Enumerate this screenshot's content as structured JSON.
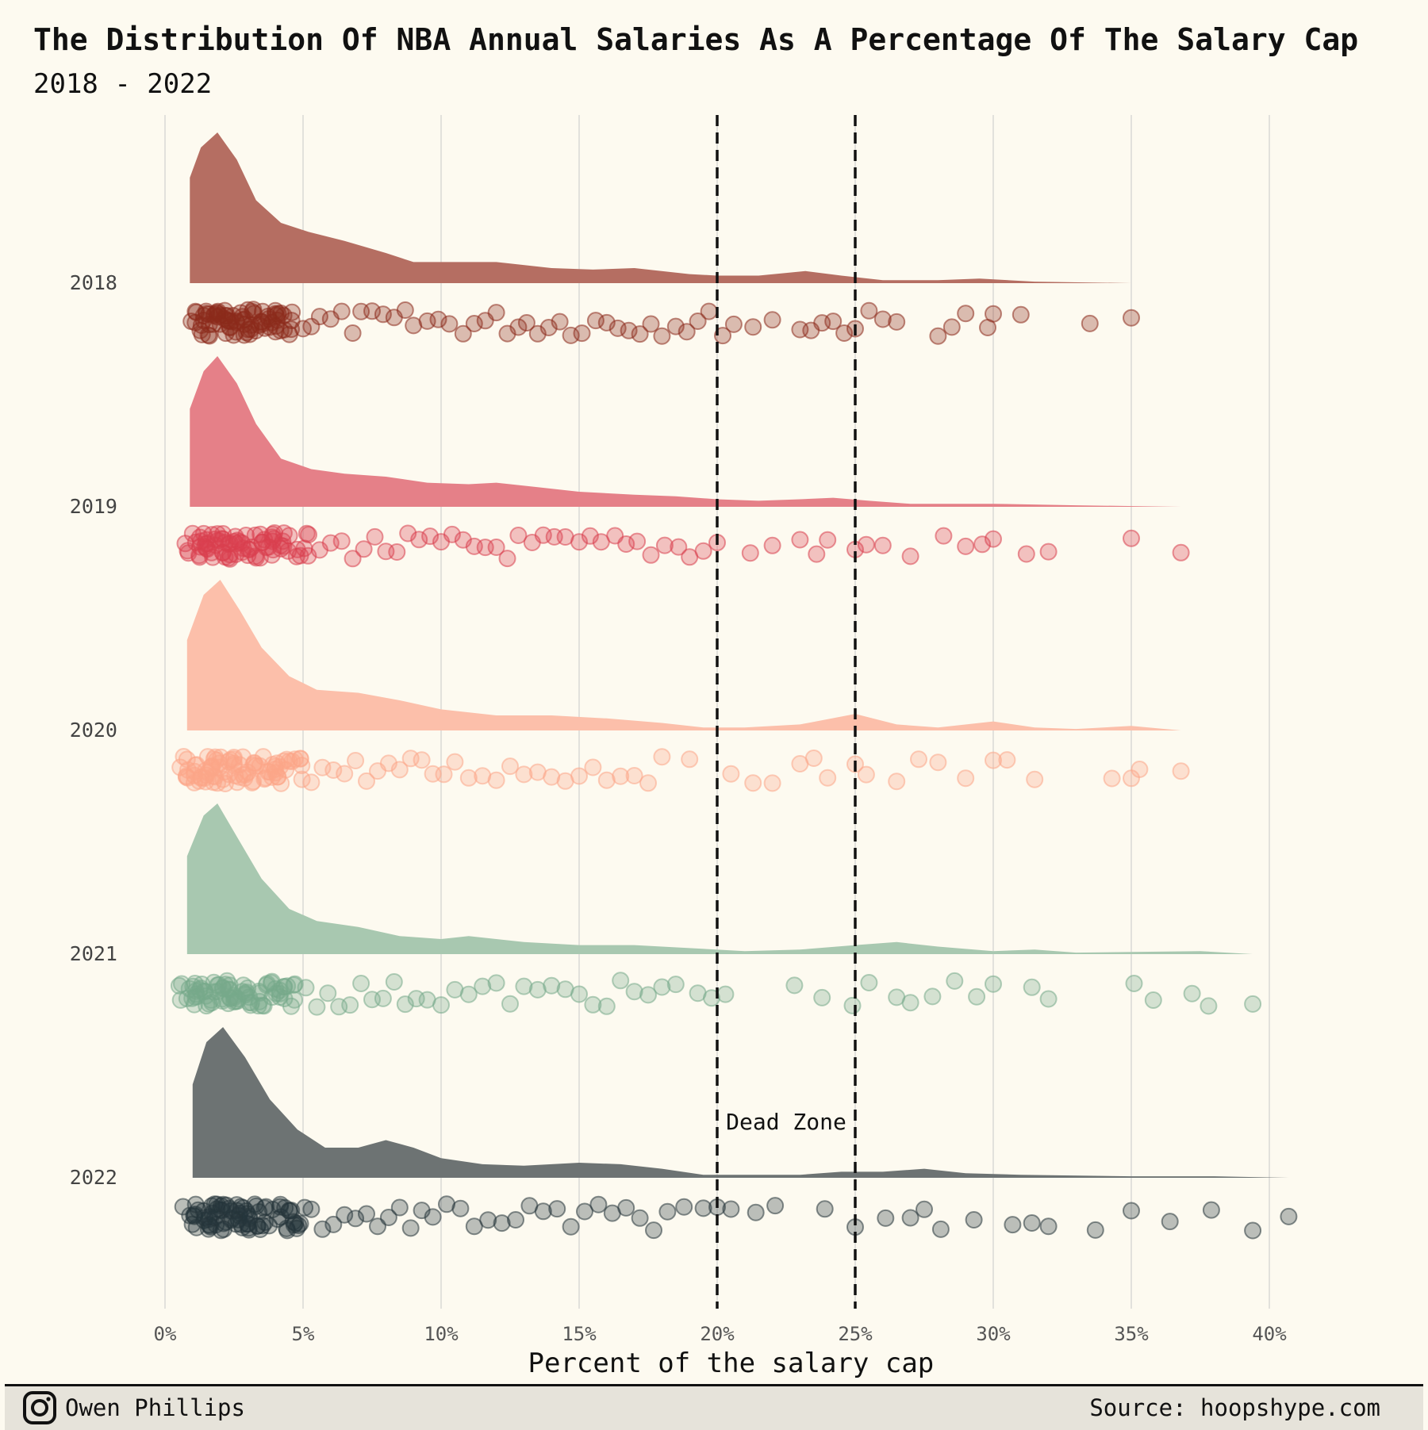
{
  "chart_data": {
    "type": "raincloud",
    "title": "The Distribution Of NBA Annual Salaries As A Percentage Of The Salary Cap",
    "subtitle": "2018 - 2022",
    "xlabel": "Percent of the salary cap",
    "ylabel": "",
    "xlim": [
      0,
      41
    ],
    "x_ticks": [
      0,
      5,
      10,
      15,
      20,
      25,
      30,
      35,
      40
    ],
    "x_tick_labels": [
      "0%",
      "5%",
      "10%",
      "15%",
      "20%",
      "25%",
      "30%",
      "35%",
      "40%"
    ],
    "grid": "vertical",
    "reference_lines": [
      20,
      25
    ],
    "annotation": "Dead Zone",
    "series": [
      {
        "name": "2018",
        "color": "#8c2a1c",
        "fill": "#b56e62",
        "density": [
          [
            0.9,
            0.7
          ],
          [
            1.3,
            0.9
          ],
          [
            1.9,
            1.0
          ],
          [
            2.6,
            0.82
          ],
          [
            3.3,
            0.55
          ],
          [
            4.2,
            0.4
          ],
          [
            5.2,
            0.34
          ],
          [
            6.5,
            0.28
          ],
          [
            8.0,
            0.2
          ],
          [
            9.0,
            0.14
          ],
          [
            11.0,
            0.14
          ],
          [
            12.0,
            0.14
          ],
          [
            14.0,
            0.1
          ],
          [
            15.5,
            0.09
          ],
          [
            17.0,
            0.1
          ],
          [
            19.0,
            0.06
          ],
          [
            20.0,
            0.05
          ],
          [
            21.5,
            0.05
          ],
          [
            23.2,
            0.08
          ],
          [
            24.5,
            0.05
          ],
          [
            26.0,
            0.02
          ],
          [
            28.0,
            0.02
          ],
          [
            29.5,
            0.03
          ],
          [
            31.5,
            0.01
          ],
          [
            35.0,
            0.0
          ]
        ],
        "points": [
          1.1,
          1.4,
          1.6,
          1.8,
          2.0,
          2.2,
          2.4,
          2.6,
          2.8,
          3.0,
          3.2,
          3.5,
          3.8,
          4.0,
          4.3,
          4.6,
          5.0,
          5.3,
          5.6,
          6.0,
          6.4,
          6.8,
          7.1,
          7.5,
          7.9,
          8.3,
          8.7,
          9.0,
          9.5,
          9.9,
          10.3,
          10.8,
          11.2,
          11.6,
          12.0,
          12.4,
          12.8,
          13.1,
          13.5,
          13.9,
          14.3,
          14.7,
          15.1,
          15.6,
          16.0,
          16.4,
          16.8,
          17.2,
          17.6,
          18.0,
          18.5,
          18.9,
          19.3,
          19.7,
          20.2,
          20.6,
          21.3,
          22.0,
          23.0,
          23.4,
          23.8,
          24.2,
          24.6,
          25.0,
          25.5,
          26.0,
          26.5,
          28.0,
          28.5,
          29.0,
          29.8,
          30.0,
          31.0,
          33.5,
          35.0
        ]
      },
      {
        "name": "2019",
        "color": "#d9404e",
        "fill": "#e58088",
        "density": [
          [
            0.9,
            0.65
          ],
          [
            1.4,
            0.9
          ],
          [
            1.9,
            1.0
          ],
          [
            2.6,
            0.82
          ],
          [
            3.3,
            0.55
          ],
          [
            4.2,
            0.32
          ],
          [
            5.3,
            0.25
          ],
          [
            6.5,
            0.22
          ],
          [
            8.0,
            0.2
          ],
          [
            9.5,
            0.16
          ],
          [
            11.0,
            0.15
          ],
          [
            12.0,
            0.16
          ],
          [
            13.5,
            0.13
          ],
          [
            15.0,
            0.1
          ],
          [
            17.0,
            0.08
          ],
          [
            18.5,
            0.07
          ],
          [
            20.0,
            0.05
          ],
          [
            21.5,
            0.04
          ],
          [
            23.0,
            0.05
          ],
          [
            24.2,
            0.06
          ],
          [
            25.5,
            0.04
          ],
          [
            27.0,
            0.02
          ],
          [
            30.0,
            0.02
          ],
          [
            33.0,
            0.01
          ],
          [
            36.8,
            0.0
          ]
        ],
        "points": [
          1.0,
          1.3,
          1.5,
          1.7,
          1.9,
          2.1,
          2.3,
          2.5,
          2.8,
          3.0,
          3.3,
          3.6,
          3.9,
          4.2,
          4.5,
          4.9,
          5.2,
          5.6,
          6.0,
          6.4,
          6.8,
          7.2,
          7.6,
          8.0,
          8.4,
          8.8,
          9.2,
          9.6,
          10.0,
          10.4,
          10.8,
          11.2,
          11.6,
          12.0,
          12.4,
          12.8,
          13.3,
          13.7,
          14.1,
          14.5,
          15.0,
          15.4,
          15.8,
          16.3,
          16.7,
          17.1,
          17.6,
          18.1,
          18.6,
          19.0,
          19.5,
          20.0,
          21.2,
          22.0,
          23.0,
          23.6,
          24.0,
          25.0,
          25.4,
          26.0,
          27.0,
          28.2,
          29.0,
          29.6,
          30.0,
          31.2,
          32.0,
          35.0,
          36.8
        ]
      },
      {
        "name": "2020",
        "color": "#fca588",
        "fill": "#fcbfaa",
        "density": [
          [
            0.8,
            0.6
          ],
          [
            1.4,
            0.9
          ],
          [
            2.0,
            1.0
          ],
          [
            2.7,
            0.8
          ],
          [
            3.5,
            0.55
          ],
          [
            4.5,
            0.36
          ],
          [
            5.5,
            0.27
          ],
          [
            7.0,
            0.25
          ],
          [
            8.5,
            0.2
          ],
          [
            10.0,
            0.14
          ],
          [
            12.0,
            0.1
          ],
          [
            14.0,
            0.1
          ],
          [
            16.0,
            0.08
          ],
          [
            18.0,
            0.05
          ],
          [
            19.5,
            0.02
          ],
          [
            21.0,
            0.02
          ],
          [
            23.0,
            0.04
          ],
          [
            25.0,
            0.11
          ],
          [
            26.5,
            0.04
          ],
          [
            28.0,
            0.02
          ],
          [
            30.0,
            0.06
          ],
          [
            31.5,
            0.02
          ],
          [
            33.0,
            0.01
          ],
          [
            35.0,
            0.03
          ],
          [
            36.8,
            0.0
          ]
        ],
        "points": [
          0.8,
          1.1,
          1.3,
          1.5,
          1.7,
          1.9,
          2.1,
          2.3,
          2.5,
          2.7,
          3.0,
          3.3,
          3.6,
          3.9,
          4.2,
          4.5,
          4.9,
          5.3,
          5.7,
          6.1,
          6.5,
          6.9,
          7.3,
          7.7,
          8.1,
          8.5,
          8.9,
          9.3,
          9.7,
          10.1,
          10.5,
          11.0,
          11.5,
          12.0,
          12.5,
          13.0,
          13.5,
          14.0,
          14.5,
          15.0,
          15.5,
          16.0,
          16.5,
          17.0,
          17.5,
          18.0,
          19.0,
          20.5,
          21.3,
          22.0,
          23.0,
          23.5,
          24.0,
          25.0,
          25.4,
          26.5,
          27.3,
          28.0,
          29.0,
          30.0,
          30.5,
          31.5,
          34.3,
          35.0,
          35.3,
          36.8
        ]
      },
      {
        "name": "2021",
        "color": "#77a98a",
        "fill": "#a8c8b0",
        "density": [
          [
            0.8,
            0.65
          ],
          [
            1.4,
            0.92
          ],
          [
            1.9,
            1.0
          ],
          [
            2.6,
            0.78
          ],
          [
            3.5,
            0.5
          ],
          [
            4.5,
            0.3
          ],
          [
            5.5,
            0.22
          ],
          [
            7.0,
            0.18
          ],
          [
            8.5,
            0.12
          ],
          [
            10.0,
            0.1
          ],
          [
            11.0,
            0.12
          ],
          [
            13.0,
            0.08
          ],
          [
            15.0,
            0.06
          ],
          [
            17.0,
            0.06
          ],
          [
            19.0,
            0.04
          ],
          [
            21.0,
            0.02
          ],
          [
            23.0,
            0.03
          ],
          [
            25.0,
            0.06
          ],
          [
            26.5,
            0.08
          ],
          [
            28.0,
            0.05
          ],
          [
            30.0,
            0.02
          ],
          [
            31.5,
            0.03
          ],
          [
            33.0,
            0.01
          ],
          [
            37.5,
            0.02
          ],
          [
            39.4,
            0.0
          ]
        ],
        "points": [
          0.8,
          1.1,
          1.3,
          1.5,
          1.7,
          1.9,
          2.1,
          2.3,
          2.5,
          2.8,
          3.1,
          3.4,
          3.7,
          4.0,
          4.3,
          4.7,
          5.1,
          5.5,
          5.9,
          6.3,
          6.7,
          7.1,
          7.5,
          7.9,
          8.3,
          8.7,
          9.1,
          9.5,
          10.0,
          10.5,
          11.0,
          11.5,
          12.0,
          12.5,
          13.0,
          13.5,
          14.0,
          14.5,
          15.0,
          15.5,
          16.0,
          16.5,
          17.0,
          17.5,
          18.0,
          18.5,
          19.3,
          19.8,
          20.3,
          22.8,
          23.8,
          24.9,
          25.5,
          26.5,
          27.0,
          27.8,
          28.6,
          29.4,
          30.0,
          31.4,
          32.0,
          35.1,
          35.8,
          37.2,
          37.8,
          39.4
        ]
      },
      {
        "name": "2022",
        "color": "#26343a",
        "fill": "#6d7373",
        "density": [
          [
            1.0,
            0.62
          ],
          [
            1.5,
            0.9
          ],
          [
            2.1,
            1.0
          ],
          [
            2.9,
            0.8
          ],
          [
            3.8,
            0.52
          ],
          [
            4.8,
            0.32
          ],
          [
            5.8,
            0.2
          ],
          [
            7.0,
            0.2
          ],
          [
            8.0,
            0.25
          ],
          [
            9.0,
            0.2
          ],
          [
            10.0,
            0.13
          ],
          [
            11.5,
            0.09
          ],
          [
            13.0,
            0.08
          ],
          [
            15.0,
            0.1
          ],
          [
            16.5,
            0.09
          ],
          [
            18.0,
            0.06
          ],
          [
            19.5,
            0.02
          ],
          [
            21.0,
            0.02
          ],
          [
            23.0,
            0.02
          ],
          [
            24.5,
            0.04
          ],
          [
            26.0,
            0.04
          ],
          [
            27.5,
            0.06
          ],
          [
            29.0,
            0.03
          ],
          [
            31.0,
            0.02
          ],
          [
            35.0,
            0.01
          ],
          [
            38.0,
            0.01
          ],
          [
            40.7,
            0.0
          ]
        ],
        "points": [
          0.9,
          1.2,
          1.4,
          1.6,
          1.8,
          2.0,
          2.2,
          2.4,
          2.6,
          2.8,
          3.0,
          3.3,
          3.6,
          3.9,
          4.2,
          4.5,
          4.9,
          5.3,
          5.7,
          6.1,
          6.5,
          6.9,
          7.3,
          7.7,
          8.1,
          8.5,
          8.9,
          9.3,
          9.7,
          10.2,
          10.7,
          11.2,
          11.7,
          12.2,
          12.7,
          13.2,
          13.7,
          14.2,
          14.7,
          15.2,
          15.7,
          16.2,
          16.7,
          17.2,
          17.7,
          18.2,
          18.8,
          19.5,
          20.0,
          20.5,
          21.4,
          22.1,
          23.9,
          25.0,
          26.1,
          27.0,
          27.5,
          28.1,
          29.3,
          30.7,
          31.4,
          32.0,
          33.7,
          35.0,
          36.4,
          37.9,
          39.4,
          40.7
        ]
      }
    ]
  },
  "footer": {
    "author": "Owen Phillips",
    "source": "Source: hoopshype.com",
    "icon": "instagram-icon"
  }
}
